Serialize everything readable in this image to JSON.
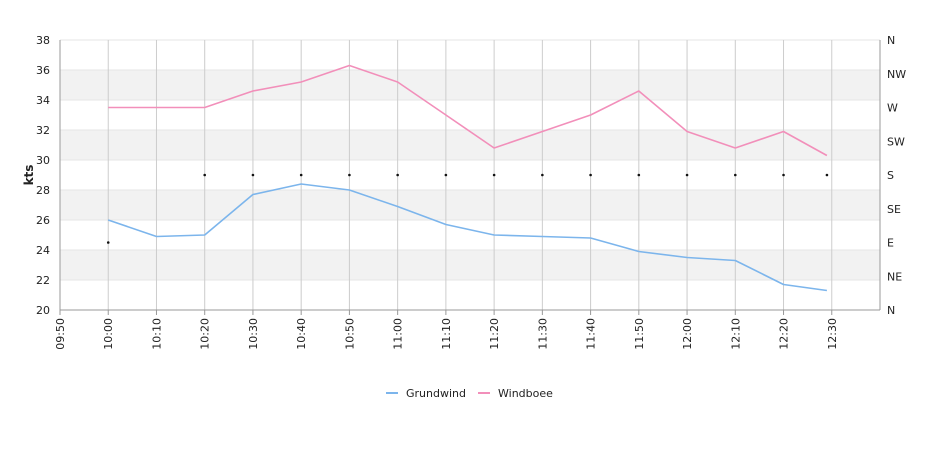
{
  "chart_data": {
    "type": "line",
    "xlabel": "",
    "ylabel": "kts",
    "x_tick_labels": [
      "09:50",
      "10:00",
      "10:10",
      "10:20",
      "10:30",
      "10:40",
      "10:50",
      "11:00",
      "11:10",
      "11:20",
      "11:30",
      "11:40",
      "11:50",
      "12:00",
      "12:10",
      "12:20",
      "12:30"
    ],
    "x_range_minutes": [
      -10,
      160
    ],
    "ylim": [
      20,
      38
    ],
    "y_ticks": [
      20,
      22,
      24,
      26,
      28,
      30,
      32,
      34,
      36,
      38
    ],
    "y2_tick_labels": [
      "N",
      "NE",
      "E",
      "SE",
      "S",
      "SW",
      "W",
      "NW",
      "N"
    ],
    "grid": true,
    "legend_position": "bottom",
    "series": [
      {
        "name": "Grundwind",
        "color": "#7cb5ec",
        "x": [
          0,
          10,
          20,
          30,
          40,
          50,
          60,
          70,
          80,
          90,
          100,
          110,
          120,
          130,
          140,
          149
        ],
        "values": [
          26.0,
          24.9,
          25.0,
          27.7,
          28.4,
          28.0,
          26.9,
          25.7,
          25.0,
          24.9,
          24.8,
          23.9,
          23.5,
          23.3,
          21.7,
          21.3
        ]
      },
      {
        "name": "Windboee",
        "color": "#f28fba",
        "x": [
          0,
          10,
          20,
          30,
          40,
          50,
          60,
          70,
          80,
          90,
          100,
          110,
          120,
          130,
          140,
          149
        ],
        "values": [
          33.5,
          33.5,
          33.5,
          34.6,
          35.2,
          36.3,
          35.2,
          33.0,
          30.8,
          31.9,
          33.0,
          34.6,
          31.9,
          30.8,
          31.9,
          30.3
        ]
      }
    ],
    "direction_points": {
      "x": [
        0,
        20,
        30,
        40,
        50,
        60,
        70,
        80,
        90,
        100,
        110,
        120,
        130,
        140,
        149
      ],
      "values": [
        90,
        180,
        180,
        180,
        180,
        180,
        180,
        180,
        180,
        180,
        180,
        180,
        180,
        180,
        180
      ]
    }
  }
}
